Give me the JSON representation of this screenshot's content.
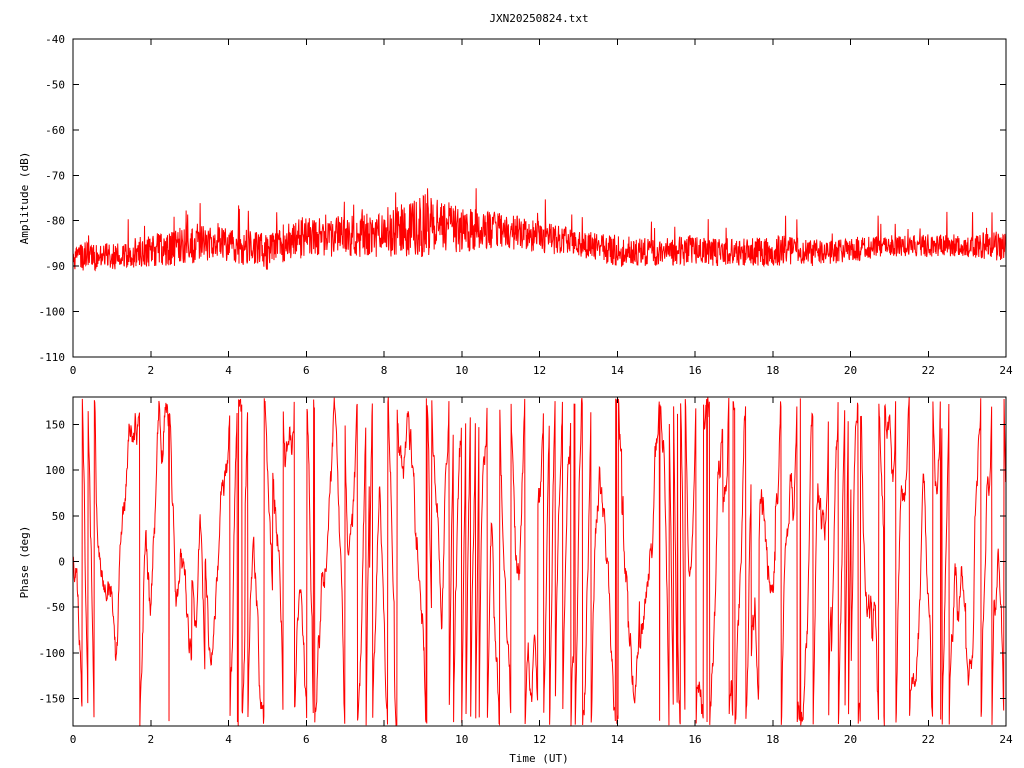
{
  "title": "JXN20250824.txt",
  "chart_data": [
    {
      "type": "line",
      "ylabel": "Amplitude (dB)",
      "xlabel": "",
      "xlim": [
        0,
        24
      ],
      "ylim": [
        -110,
        -40
      ],
      "xticks": [
        "0",
        "2",
        "4",
        "6",
        "8",
        "10",
        "12",
        "14",
        "16",
        "18",
        "20",
        "22",
        "24"
      ],
      "yticks": [
        "-40",
        "-50",
        "-60",
        "-70",
        "-80",
        "-90",
        "-100",
        "-110"
      ],
      "grid": false,
      "color": "#ff0000",
      "envelope": {
        "x": [
          0,
          1,
          2,
          3,
          3.5,
          4,
          4.5,
          5,
          5.5,
          6,
          7,
          8,
          8.5,
          9,
          9.5,
          10,
          11,
          12,
          13,
          14,
          15,
          16,
          17,
          18,
          19,
          20,
          21,
          22,
          23,
          24
        ],
        "upper": [
          -84,
          -85,
          -83,
          -81,
          -80,
          -81,
          -82,
          -83,
          -80,
          -79,
          -79,
          -78,
          -76,
          -74,
          -75,
          -77,
          -78,
          -80,
          -82,
          -83,
          -84,
          -83,
          -84,
          -83,
          -84,
          -84,
          -83,
          -83,
          -83,
          -82
        ],
        "lower": [
          -91,
          -91,
          -90,
          -90,
          -89,
          -89,
          -90,
          -91,
          -89,
          -88,
          -88,
          -88,
          -88,
          -88,
          -87,
          -87,
          -86,
          -87,
          -88,
          -90,
          -90,
          -90,
          -90,
          -90,
          -90,
          -89,
          -88,
          -88,
          -88,
          -89
        ]
      }
    },
    {
      "type": "line",
      "ylabel": "Phase (deg)",
      "xlabel": "Time (UT)",
      "xlim": [
        0,
        24
      ],
      "ylim": [
        -180,
        180
      ],
      "xticks": [
        "0",
        "2",
        "4",
        "6",
        "8",
        "10",
        "12",
        "14",
        "16",
        "18",
        "20",
        "22",
        "24"
      ],
      "yticks": [
        "150",
        "100",
        "50",
        "0",
        "-50",
        "-100",
        "-150"
      ],
      "grid": false,
      "color": "#ff0000",
      "style": "wrapped phase, near full-range"
    }
  ]
}
